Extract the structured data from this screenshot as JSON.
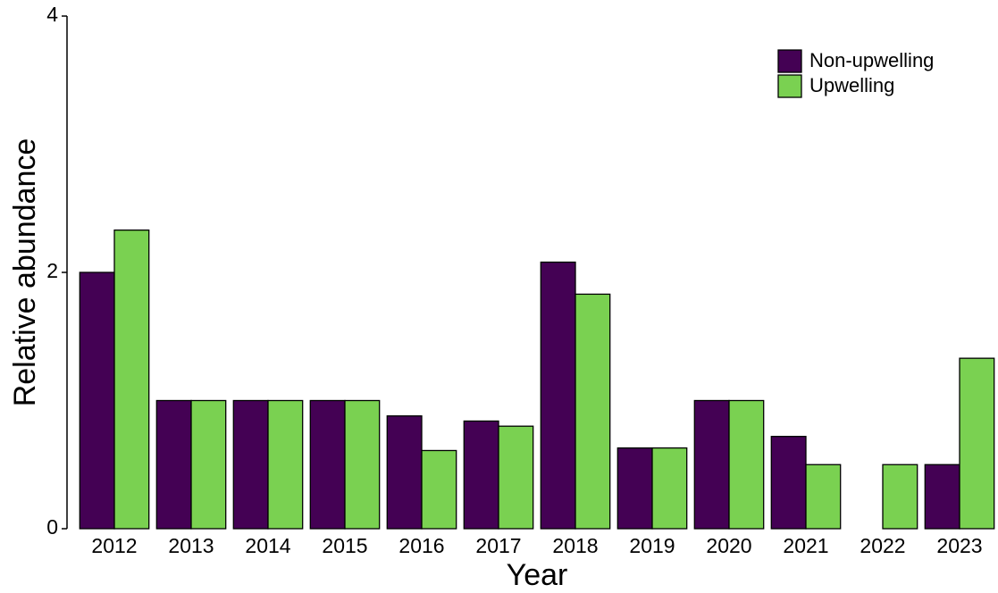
{
  "chart_data": {
    "type": "bar",
    "x_label": "Year",
    "y_label": "Relative abundance",
    "categories": [
      "2012",
      "2013",
      "2014",
      "2015",
      "2016",
      "2017",
      "2018",
      "2019",
      "2020",
      "2021",
      "2022",
      "2023"
    ],
    "series": [
      {
        "name": "Non-upwelling",
        "color": "#440154",
        "values": [
          2.0,
          1.0,
          1.0,
          1.0,
          0.88,
          0.84,
          2.08,
          0.63,
          1.0,
          0.72,
          0,
          0.5
        ]
      },
      {
        "name": "Upwelling",
        "color": "#7ad151",
        "values": [
          2.33,
          1.0,
          1.0,
          1.0,
          0.61,
          0.8,
          1.83,
          0.63,
          1.0,
          0.5,
          0.5,
          1.33
        ]
      }
    ],
    "ylim": [
      0,
      4
    ],
    "yticks": [
      0,
      2,
      4
    ],
    "grid": false,
    "legend": "top-right"
  }
}
